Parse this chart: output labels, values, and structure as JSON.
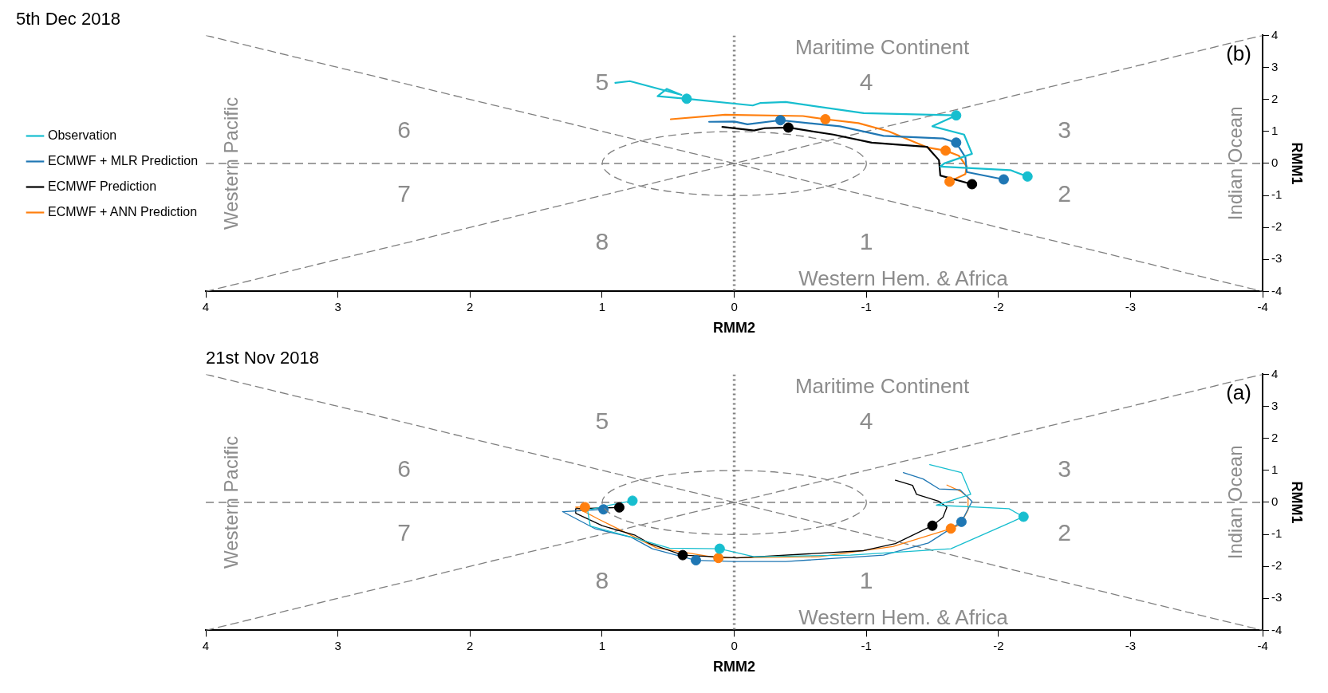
{
  "chart_data": [
    {
      "type": "line",
      "title": "5th Dec 2018",
      "xlabel": "RMM2",
      "ylabel": "RMM1",
      "xlim": [
        4,
        -4
      ],
      "ylim": [
        -4,
        4
      ],
      "xticks": [
        4,
        3,
        2,
        1,
        0,
        -1,
        -2,
        -3,
        -4
      ],
      "yticks": [
        -4,
        -3,
        -2,
        -1,
        0,
        1,
        2,
        3,
        4
      ],
      "legend": "left",
      "marker": "none",
      "ref_lines": [
        {
          "axis": "x",
          "value": 0,
          "color": "#808080",
          "line_style": "dotted"
        },
        {
          "axis": "y",
          "value": 0,
          "color": "#808080",
          "line_style": "dashed"
        }
      ],
      "annotations": [
        "Western Hem. & Africa",
        "Maritime Continent",
        "Western Pacific",
        "Indian Ocean",
        "1",
        "2",
        "3",
        "4",
        "5",
        "6",
        "7",
        "8",
        "(b)"
      ],
      "series": [
        {
          "name": "Observation",
          "color": "#17becf",
          "x": [
            -2.22,
            -2.09,
            -1.56,
            -1.59,
            -1.8,
            -1.74,
            -1.5,
            -1.68,
            -0.98,
            -0.39,
            -0.2,
            -0.14,
            0.36,
            0.58,
            0.51,
            0.4,
            0.79,
            0.9
          ],
          "values": [
            -0.41,
            -0.21,
            -0.1,
            0,
            0.3,
            0.9,
            1.16,
            1.5,
            1.57,
            1.92,
            1.89,
            1.81,
            2.02,
            2.1,
            2.33,
            2.14,
            2.57,
            2.52
          ]
        },
        {
          "name": "ECMWF + MLR Prediction",
          "color": "#1f77b4",
          "x": [
            -2.04,
            -1.76,
            -1.75,
            -1.68,
            -1.58,
            -1.13,
            -0.8,
            -0.35,
            -0.1,
            0,
            0.19
          ],
          "values": [
            -0.5,
            -0.27,
            0.19,
            0.65,
            0.78,
            0.86,
            1.16,
            1.35,
            1.22,
            1.31,
            1.3
          ]
        },
        {
          "name": "ECMWF Prediction",
          "color": "#000000",
          "x": [
            -1.8,
            -1.56,
            -1.55,
            -1.49,
            -1.46,
            -1.04,
            -0.75,
            -0.41,
            -0.23,
            -0.15,
            0.09
          ],
          "values": [
            -0.65,
            -0.38,
            0.1,
            0.38,
            0.52,
            0.65,
            0.9,
            1.12,
            1.1,
            1.03,
            1.14
          ]
        },
        {
          "name": "ECMWF + ANN Prediction",
          "color": "#ff7f0e",
          "x": [
            -1.63,
            -1.75,
            -1.76,
            -1.7,
            -1.6,
            -1.46,
            -1.17,
            -0.94,
            -0.69,
            -0.52,
            0.07,
            0.48
          ],
          "values": [
            -0.57,
            -0.33,
            -0.1,
            0.24,
            0.4,
            0.5,
            1,
            1.26,
            1.38,
            1.48,
            1.52,
            1.38
          ]
        },
        {
          "type": "scatter",
          "marker": "circle",
          "color": "#17becf",
          "x": [
            -2.22,
            -1.68,
            0.36
          ],
          "values": [
            -0.41,
            1.5,
            2.02
          ]
        },
        {
          "type": "scatter",
          "marker": "circle",
          "color": "#1f77b4",
          "x": [
            -2.04,
            -1.68,
            -0.35
          ],
          "values": [
            -0.5,
            0.65,
            1.35
          ]
        },
        {
          "type": "scatter",
          "marker": "circle",
          "color": "#000000",
          "x": [
            -1.8,
            -0.41
          ],
          "values": [
            -0.65,
            1.12
          ]
        },
        {
          "type": "scatter",
          "marker": "circle",
          "color": "#ff7f0e",
          "x": [
            -1.63,
            -1.6,
            -0.69
          ],
          "values": [
            -0.57,
            0.4,
            1.38
          ]
        },
        {
          "color": "#808080",
          "line_style": "dashed",
          "x": [
            4,
            -4
          ],
          "values": [
            4,
            -4
          ]
        },
        {
          "color": "#808080",
          "line_style": "dashed",
          "x": [
            4,
            -4
          ],
          "values": [
            -4,
            4
          ]
        }
      ]
    },
    {
      "type": "line",
      "title": "21st Nov 2018",
      "xlabel": "RMM2",
      "ylabel": "RMM1",
      "xlim": [
        4,
        -4
      ],
      "ylim": [
        -4,
        4
      ],
      "xticks": [
        4,
        3,
        2,
        1,
        0,
        -1,
        -2,
        -3,
        -4
      ],
      "yticks": [
        -4,
        -3,
        -2,
        -1,
        0,
        1,
        2,
        3,
        4
      ],
      "marker": "none",
      "ref_lines": [
        {
          "axis": "x",
          "value": 0,
          "color": "#808080",
          "line_style": "dotted"
        },
        {
          "axis": "y",
          "value": 0,
          "color": "#808080",
          "line_style": "dashed"
        }
      ],
      "annotations": [
        "Western Hem. & Africa",
        "Maritime Continent",
        "Western Pacific",
        "Indian Ocean",
        "1",
        "2",
        "3",
        "4",
        "5",
        "6",
        "7",
        "8",
        "(a)"
      ],
      "series": [
        {
          "color": "#17becf",
          "x": [
            0.77,
            0.91,
            1.11,
            1.09,
            0.76,
            0.49,
            0.11,
            -0.15,
            -0.88,
            -1.64,
            -2.19,
            -2.08,
            -1.53,
            -1.79,
            -1.72,
            -1.48
          ],
          "values": [
            0.05,
            -0.06,
            -0.24,
            -0.74,
            -1.11,
            -1.43,
            -1.45,
            -1.7,
            -1.65,
            -1.45,
            -0.45,
            -0.2,
            -0.09,
            0.25,
            0.93,
            1.18
          ]
        },
        {
          "color": "#1f77b4",
          "x": [
            0.99,
            1.3,
            1.05,
            0.78,
            0.62,
            0.29,
            0,
            -0.39,
            -1.13,
            -1.47,
            -1.72,
            -1.8,
            -1.71,
            -1.55,
            -1.43,
            -1.28
          ],
          "values": [
            -0.22,
            -0.29,
            -0.83,
            -1.09,
            -1.45,
            -1.81,
            -1.85,
            -1.85,
            -1.65,
            -1.27,
            -0.61,
            0.03,
            0.39,
            0.42,
            0.73,
            0.93
          ]
        },
        {
          "color": "#000000",
          "x": [
            0.87,
            1.2,
            1.2,
            1,
            0.75,
            0.64,
            0.39,
            -0.02,
            -0.98,
            -1.22,
            -1.5,
            -1.58,
            -1.61,
            -1.55,
            -1.38,
            -1.35,
            -1.22
          ],
          "values": [
            -0.16,
            -0.2,
            -0.34,
            -0.73,
            -1.03,
            -1.29,
            -1.65,
            -1.74,
            -1.51,
            -1.29,
            -0.73,
            -0.47,
            -0.15,
            0.03,
            0.25,
            0.53,
            0.69
          ]
        },
        {
          "color": "#ff7f0e",
          "x": [
            1.13,
            1.2,
            1.03,
            0.59,
            0.12,
            -0.64,
            -1.2,
            -1.64,
            -1.71,
            -1.77,
            -1.77,
            -1.72,
            -1.61
          ],
          "values": [
            -0.15,
            -0.15,
            -0.52,
            -1.42,
            -1.74,
            -1.7,
            -1.38,
            -0.82,
            -0.7,
            -0.24,
            0.16,
            0.33,
            0.54
          ]
        },
        {
          "type": "scatter",
          "marker": "circle",
          "color": "#17becf",
          "x": [
            0.77,
            0.11,
            -2.19
          ],
          "values": [
            0.05,
            -1.45,
            -0.45
          ]
        },
        {
          "type": "scatter",
          "marker": "circle",
          "color": "#1f77b4",
          "x": [
            0.99,
            0.29,
            -1.72
          ],
          "values": [
            -0.22,
            -1.81,
            -0.61
          ]
        },
        {
          "type": "scatter",
          "marker": "circle",
          "color": "#000000",
          "x": [
            0.87,
            0.39,
            -1.5
          ],
          "values": [
            -0.16,
            -1.65,
            -0.73
          ]
        },
        {
          "type": "scatter",
          "marker": "circle",
          "color": "#ff7f0e",
          "x": [
            1.13,
            0.12,
            -1.64
          ],
          "values": [
            -0.15,
            -1.74,
            -0.82
          ]
        },
        {
          "color": "#808080",
          "line_style": "dashed",
          "x": [
            4,
            -4
          ],
          "values": [
            4,
            -4
          ]
        },
        {
          "color": "#808080",
          "line_style": "dashed",
          "x": [
            4,
            -4
          ],
          "values": [
            -4,
            4
          ]
        }
      ]
    }
  ]
}
